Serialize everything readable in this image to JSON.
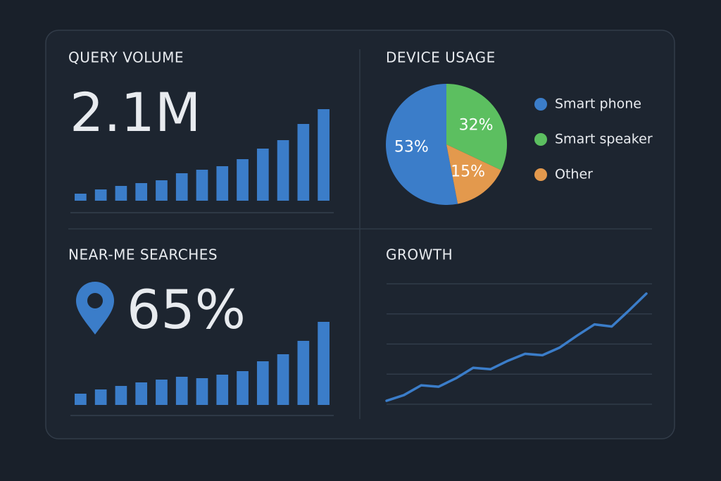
{
  "chart_data": [
    {
      "type": "bar",
      "title": "QUERY VOLUME",
      "headline": "2.1M",
      "color": "#3b7dc9",
      "values": [
        10,
        16,
        21,
        25,
        29,
        39,
        44,
        49,
        59,
        74,
        86,
        109,
        130
      ]
    },
    {
      "type": "pie",
      "title": "DEVICE USAGE",
      "categories": [
        "Smart phone",
        "Smart speaker",
        "Other"
      ],
      "values": [
        53,
        32,
        15
      ],
      "value_labels": [
        "53%",
        "32%",
        "15%"
      ],
      "colors": [
        "#3b7dc9",
        "#5cbf60",
        "#e3994d"
      ]
    },
    {
      "type": "bar",
      "title": "NEAR-ME SEARCHES",
      "headline": "65%",
      "color": "#3b7dc9",
      "values": [
        16,
        22,
        27,
        32,
        36,
        40,
        38,
        43,
        48,
        62,
        72,
        91,
        118
      ]
    },
    {
      "type": "line",
      "title": "GROWTH",
      "color": "#3b7dc9",
      "values": [
        5,
        13,
        27,
        25,
        37,
        52,
        50,
        62,
        72,
        70,
        81,
        98,
        114,
        111,
        134,
        158
      ],
      "ylim": [
        0,
        172
      ],
      "yticks": [
        0,
        43,
        86,
        129,
        172
      ],
      "grid": true
    }
  ]
}
